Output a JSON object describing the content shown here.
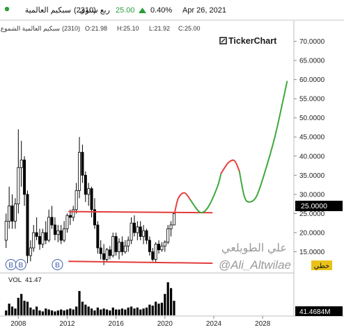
{
  "header": {
    "symbol_name": "سبكيم العالمية",
    "symbol_code": "(2310)",
    "period": "ربع سنوي",
    "price": "25.00",
    "change_pct": "0.40%",
    "date": "Apr 26, 2021",
    "up_color": "#2a9d3a"
  },
  "ohlc": {
    "name": "سبكيم العالمية الشموع",
    "code": "(2310)",
    "open": "O:21.98",
    "high": "H:25.10",
    "low": "L:21.92",
    "close": "C:25.00"
  },
  "logo": {
    "text": "TickerChart"
  },
  "watermark": {
    "arabic": "علي الطويلعي",
    "handle": "@Ali_Altwilae"
  },
  "right_labels": {
    "last_price": "25.0000",
    "line_tool": "خطي",
    "volume_value": "41.4684M"
  },
  "volume": {
    "label": "VOL",
    "value": "41.47"
  },
  "markers": [
    "B",
    "B",
    "B"
  ],
  "chart_data": {
    "type": "candlestick",
    "ylim": [
      10,
      75
    ],
    "y_ticks": [
      "15.0000",
      "20.0000",
      "25.0000",
      "30.0000",
      "35.0000",
      "40.0000",
      "45.0000",
      "50.0000",
      "55.0000",
      "60.0000",
      "65.0000",
      "70.0000"
    ],
    "y_tick_values": [
      15,
      20,
      25,
      30,
      35,
      40,
      45,
      50,
      55,
      60,
      65,
      70
    ],
    "xlim": [
      2006.5,
      2030.5
    ],
    "x_ticks": [
      "2008",
      "2012",
      "2016",
      "2020",
      "2024",
      "2028"
    ],
    "x_tick_values": [
      2008,
      2012,
      2016,
      2020,
      2024,
      2028
    ],
    "candles": [
      {
        "x": 2007.0,
        "o": 18.0,
        "h": 25.0,
        "l": 16.0,
        "c": 23.0
      },
      {
        "x": 2007.25,
        "o": 23.0,
        "h": 32.0,
        "l": 21.0,
        "c": 27.0
      },
      {
        "x": 2007.5,
        "o": 27.0,
        "h": 30.0,
        "l": 21.0,
        "c": 23.0
      },
      {
        "x": 2007.75,
        "o": 23.0,
        "h": 29.0,
        "l": 21.0,
        "c": 27.5
      },
      {
        "x": 2008.0,
        "o": 27.5,
        "h": 47.0,
        "l": 25.0,
        "c": 37.0
      },
      {
        "x": 2008.25,
        "o": 37.0,
        "h": 44.0,
        "l": 32.0,
        "c": 39.0
      },
      {
        "x": 2008.5,
        "o": 39.0,
        "h": 40.0,
        "l": 27.0,
        "c": 30.0
      },
      {
        "x": 2008.75,
        "o": 30.0,
        "h": 31.0,
        "l": 12.0,
        "c": 14.0
      },
      {
        "x": 2009.0,
        "o": 14.0,
        "h": 18.0,
        "l": 12.5,
        "c": 16.0
      },
      {
        "x": 2009.25,
        "o": 16.0,
        "h": 22.0,
        "l": 15.0,
        "c": 20.0
      },
      {
        "x": 2009.5,
        "o": 20.0,
        "h": 24.0,
        "l": 18.0,
        "c": 19.0
      },
      {
        "x": 2009.75,
        "o": 19.0,
        "h": 21.0,
        "l": 15.5,
        "c": 17.0
      },
      {
        "x": 2010.0,
        "o": 17.0,
        "h": 21.0,
        "l": 16.0,
        "c": 20.0
      },
      {
        "x": 2010.25,
        "o": 20.0,
        "h": 23.0,
        "l": 17.0,
        "c": 18.0
      },
      {
        "x": 2010.5,
        "o": 18.0,
        "h": 26.0,
        "l": 17.5,
        "c": 24.0
      },
      {
        "x": 2010.75,
        "o": 24.0,
        "h": 27.0,
        "l": 21.0,
        "c": 22.0
      },
      {
        "x": 2011.0,
        "o": 22.0,
        "h": 24.0,
        "l": 18.0,
        "c": 19.5
      },
      {
        "x": 2011.25,
        "o": 19.5,
        "h": 22.0,
        "l": 17.5,
        "c": 20.5
      },
      {
        "x": 2011.5,
        "o": 20.5,
        "h": 22.0,
        "l": 17.0,
        "c": 18.0
      },
      {
        "x": 2011.75,
        "o": 18.0,
        "h": 23.0,
        "l": 17.5,
        "c": 21.0
      },
      {
        "x": 2012.0,
        "o": 21.0,
        "h": 25.0,
        "l": 20.0,
        "c": 24.5
      },
      {
        "x": 2012.25,
        "o": 24.5,
        "h": 26.0,
        "l": 22.0,
        "c": 24.0
      },
      {
        "x": 2012.5,
        "o": 24.0,
        "h": 27.0,
        "l": 23.0,
        "c": 26.0
      },
      {
        "x": 2012.75,
        "o": 26.0,
        "h": 33.0,
        "l": 25.0,
        "c": 31.0
      },
      {
        "x": 2013.0,
        "o": 31.0,
        "h": 45.0,
        "l": 29.0,
        "c": 41.0
      },
      {
        "x": 2013.25,
        "o": 41.0,
        "h": 43.0,
        "l": 33.0,
        "c": 35.0
      },
      {
        "x": 2013.5,
        "o": 35.0,
        "h": 36.0,
        "l": 28.0,
        "c": 30.0
      },
      {
        "x": 2013.75,
        "o": 30.0,
        "h": 33.0,
        "l": 27.0,
        "c": 31.5
      },
      {
        "x": 2014.0,
        "o": 31.5,
        "h": 32.0,
        "l": 24.0,
        "c": 26.0
      },
      {
        "x": 2014.25,
        "o": 26.0,
        "h": 29.0,
        "l": 21.0,
        "c": 22.0
      },
      {
        "x": 2014.5,
        "o": 22.0,
        "h": 23.0,
        "l": 14.5,
        "c": 16.0
      },
      {
        "x": 2014.75,
        "o": 16.0,
        "h": 18.0,
        "l": 13.0,
        "c": 14.5
      },
      {
        "x": 2015.0,
        "o": 14.5,
        "h": 17.0,
        "l": 11.5,
        "c": 13.0
      },
      {
        "x": 2015.25,
        "o": 13.0,
        "h": 16.0,
        "l": 12.5,
        "c": 15.5
      },
      {
        "x": 2015.5,
        "o": 15.5,
        "h": 16.5,
        "l": 13.0,
        "c": 14.0
      },
      {
        "x": 2015.75,
        "o": 14.0,
        "h": 20.0,
        "l": 13.5,
        "c": 19.0
      },
      {
        "x": 2016.0,
        "o": 19.0,
        "h": 20.0,
        "l": 14.0,
        "c": 15.0
      },
      {
        "x": 2016.25,
        "o": 15.0,
        "h": 18.5,
        "l": 13.0,
        "c": 17.5
      },
      {
        "x": 2016.5,
        "o": 17.5,
        "h": 19.0,
        "l": 14.0,
        "c": 15.0
      },
      {
        "x": 2016.75,
        "o": 15.0,
        "h": 18.0,
        "l": 14.5,
        "c": 16.5
      },
      {
        "x": 2017.0,
        "o": 16.5,
        "h": 19.0,
        "l": 15.0,
        "c": 18.0
      },
      {
        "x": 2017.25,
        "o": 18.0,
        "h": 24.0,
        "l": 17.0,
        "c": 22.5
      },
      {
        "x": 2017.5,
        "o": 22.5,
        "h": 24.5,
        "l": 19.0,
        "c": 20.0
      },
      {
        "x": 2017.75,
        "o": 20.0,
        "h": 23.0,
        "l": 18.0,
        "c": 21.5
      },
      {
        "x": 2018.0,
        "o": 21.5,
        "h": 23.0,
        "l": 18.0,
        "c": 19.0
      },
      {
        "x": 2018.25,
        "o": 19.0,
        "h": 22.0,
        "l": 17.0,
        "c": 20.5
      },
      {
        "x": 2018.5,
        "o": 20.5,
        "h": 21.0,
        "l": 17.0,
        "c": 18.0
      },
      {
        "x": 2018.75,
        "o": 18.0,
        "h": 19.0,
        "l": 14.0,
        "c": 15.0
      },
      {
        "x": 2019.0,
        "o": 15.0,
        "h": 16.0,
        "l": 12.5,
        "c": 13.0
      },
      {
        "x": 2019.25,
        "o": 13.0,
        "h": 17.5,
        "l": 12.0,
        "c": 17.0
      },
      {
        "x": 2019.5,
        "o": 17.0,
        "h": 18.0,
        "l": 14.5,
        "c": 15.5
      },
      {
        "x": 2019.75,
        "o": 15.5,
        "h": 17.5,
        "l": 15.0,
        "c": 16.5
      },
      {
        "x": 2020.0,
        "o": 16.5,
        "h": 18.0,
        "l": 15.0,
        "c": 17.5
      },
      {
        "x": 2020.25,
        "o": 17.5,
        "h": 22.0,
        "l": 17.0,
        "c": 21.0
      },
      {
        "x": 2020.5,
        "o": 21.0,
        "h": 23.0,
        "l": 19.0,
        "c": 22.0
      },
      {
        "x": 2020.75,
        "o": 22.0,
        "h": 25.1,
        "l": 21.9,
        "c": 25.0
      }
    ],
    "volumes": [
      5,
      12,
      9,
      7,
      18,
      22,
      15,
      14,
      8,
      6,
      9,
      5,
      4,
      7,
      6,
      5,
      4,
      5,
      6,
      5,
      6,
      7,
      6,
      9,
      25,
      14,
      11,
      9,
      7,
      5,
      8,
      6,
      7,
      6,
      5,
      8,
      6,
      6,
      7,
      6,
      8,
      9,
      7,
      8,
      6,
      7,
      8,
      11,
      10,
      14,
      12,
      13,
      22,
      34,
      28,
      15
    ],
    "volume_ylim": [
      0,
      40
    ],
    "support_line": {
      "x1": 2012.1,
      "y1": 12.5,
      "x2": 2023.9,
      "y2": 12.0,
      "color": "#e23b3b"
    },
    "resistance_line": {
      "x1": 2012.1,
      "y1": 25.5,
      "x2": 2023.9,
      "y2": 25.2,
      "color": "#e23b3b"
    },
    "projection": {
      "segments": [
        {
          "color": "#e84040",
          "points": [
            [
              2020.8,
              25.2
            ],
            [
              2021.1,
              29.0
            ],
            [
              2021.6,
              30.4
            ],
            [
              2022.1,
              28.5
            ]
          ]
        },
        {
          "color": "#3ea83a",
          "points": [
            [
              2022.1,
              28.5
            ],
            [
              2022.7,
              25.8
            ],
            [
              2023.1,
              25.3
            ],
            [
              2023.6,
              27.0
            ],
            [
              2024.3,
              32.0
            ],
            [
              2024.6,
              35.5
            ]
          ]
        },
        {
          "color": "#e84040",
          "points": [
            [
              2024.6,
              35.5
            ],
            [
              2025.2,
              38.3
            ],
            [
              2025.7,
              38.8
            ],
            [
              2026.1,
              36.0
            ]
          ]
        },
        {
          "color": "#3ea83a",
          "points": [
            [
              2026.1,
              36.0
            ],
            [
              2026.5,
              29.5
            ],
            [
              2026.9,
              28.0
            ],
            [
              2027.5,
              29.5
            ],
            [
              2028.2,
              36.0
            ],
            [
              2029.0,
              45.0
            ],
            [
              2029.7,
              55.0
            ],
            [
              2030.0,
              59.5
            ]
          ]
        }
      ]
    },
    "marker_x": [
      2007.4,
      2008.2,
      2011.2
    ]
  }
}
